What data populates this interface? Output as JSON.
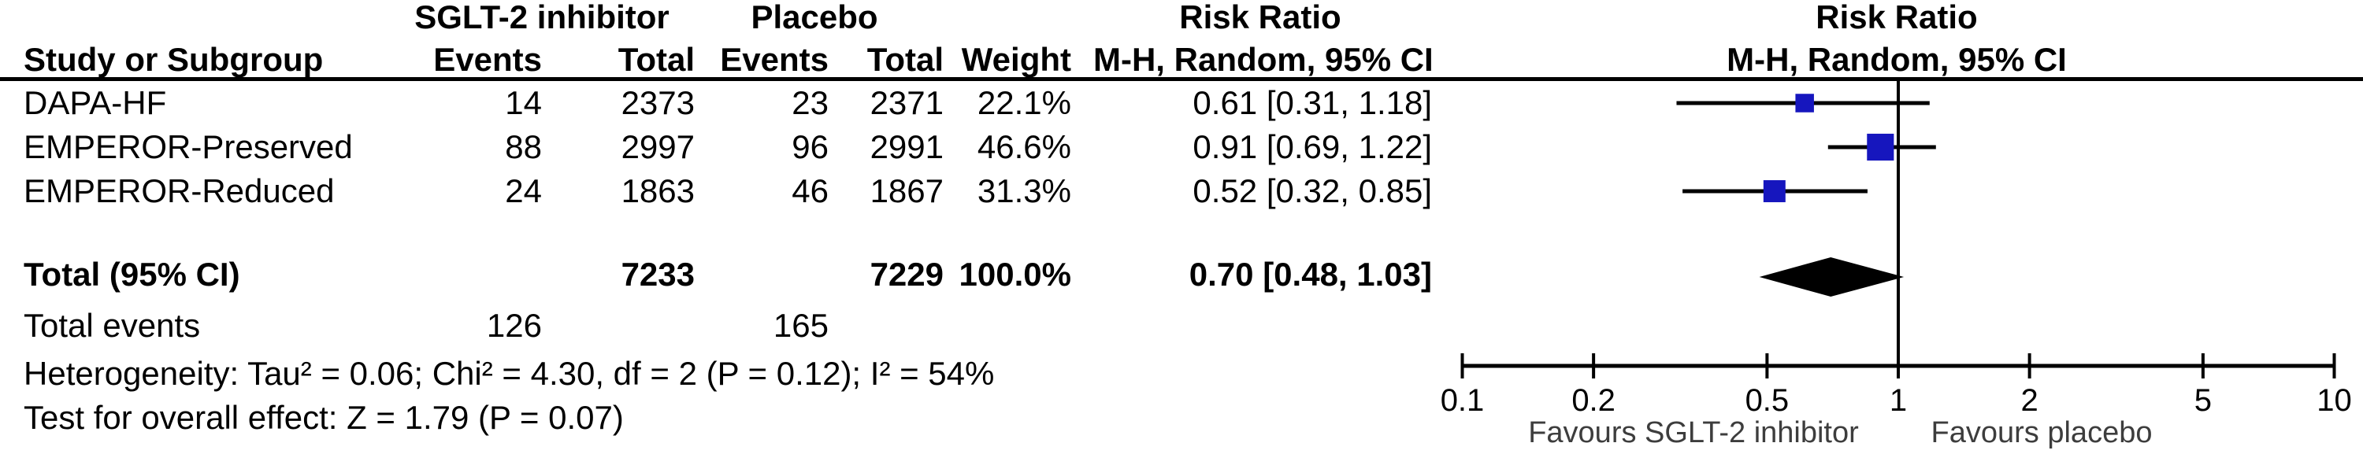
{
  "table": {
    "group_headers": {
      "treatment": "SGLT-2 inhibitor",
      "control": "Placebo",
      "risk_ratio_col": "Risk Ratio",
      "risk_ratio_plot": "Risk Ratio"
    },
    "column_headers": {
      "study": "Study or Subgroup",
      "t_events": "Events",
      "t_total": "Total",
      "c_events": "Events",
      "c_total": "Total",
      "weight": "Weight",
      "ci": "M-H, Random, 95% CI",
      "ci_plot": "M-H, Random, 95% CI"
    },
    "rows": [
      {
        "study": "DAPA-HF",
        "t_events": "14",
        "t_total": "2373",
        "c_events": "23",
        "c_total": "2371",
        "weight": "22.1%",
        "rr_text": "0.61 [0.31, 1.18]"
      },
      {
        "study": "EMPEROR-Preserved",
        "t_events": "88",
        "t_total": "2997",
        "c_events": "96",
        "c_total": "2991",
        "weight": "46.6%",
        "rr_text": "0.91 [0.69, 1.22]"
      },
      {
        "study": "EMPEROR-Reduced",
        "t_events": "24",
        "t_total": "1863",
        "c_events": "46",
        "c_total": "1867",
        "weight": "31.3%",
        "rr_text": "0.52 [0.32, 0.85]"
      }
    ],
    "total_row": {
      "label": "Total (95% CI)",
      "t_total": "7233",
      "c_total": "7229",
      "weight": "100.0%",
      "rr_text": "0.70 [0.48, 1.03]"
    },
    "total_events": {
      "label": "Total events",
      "treatment": "126",
      "control": "165"
    },
    "heterogeneity": "Heterogeneity: Tau² = 0.06; Chi² = 4.30, df = 2 (P = 0.12); I² = 54%",
    "overall_effect": "Test for overall effect: Z = 1.79 (P = 0.07)"
  },
  "chart_data": {
    "type": "scatter",
    "variant": "forest-plot",
    "x_scale": "log",
    "xlim": [
      0.1,
      10
    ],
    "x_ticks": [
      0.1,
      0.2,
      0.5,
      1,
      2,
      5,
      10
    ],
    "null_line": 1,
    "effect_measure": "Risk Ratio, M-H, Random, 95% CI",
    "studies": [
      {
        "name": "DAPA-HF",
        "rr": 0.61,
        "ci_low": 0.31,
        "ci_high": 1.18,
        "weight_pct": 22.1
      },
      {
        "name": "EMPEROR-Preserved",
        "rr": 0.91,
        "ci_low": 0.69,
        "ci_high": 1.22,
        "weight_pct": 46.6
      },
      {
        "name": "EMPEROR-Reduced",
        "rr": 0.52,
        "ci_low": 0.32,
        "ci_high": 0.85,
        "weight_pct": 31.3
      }
    ],
    "total": {
      "rr": 0.7,
      "ci_low": 0.48,
      "ci_high": 1.03
    },
    "favours_left": "Favours SGLT-2 inhibitor",
    "favours_right": "Favours placebo",
    "marker_color": "#1616BE",
    "diamond_color": "#000000",
    "line_color": "#000000",
    "favours_text_color": "#3d3d3d"
  }
}
